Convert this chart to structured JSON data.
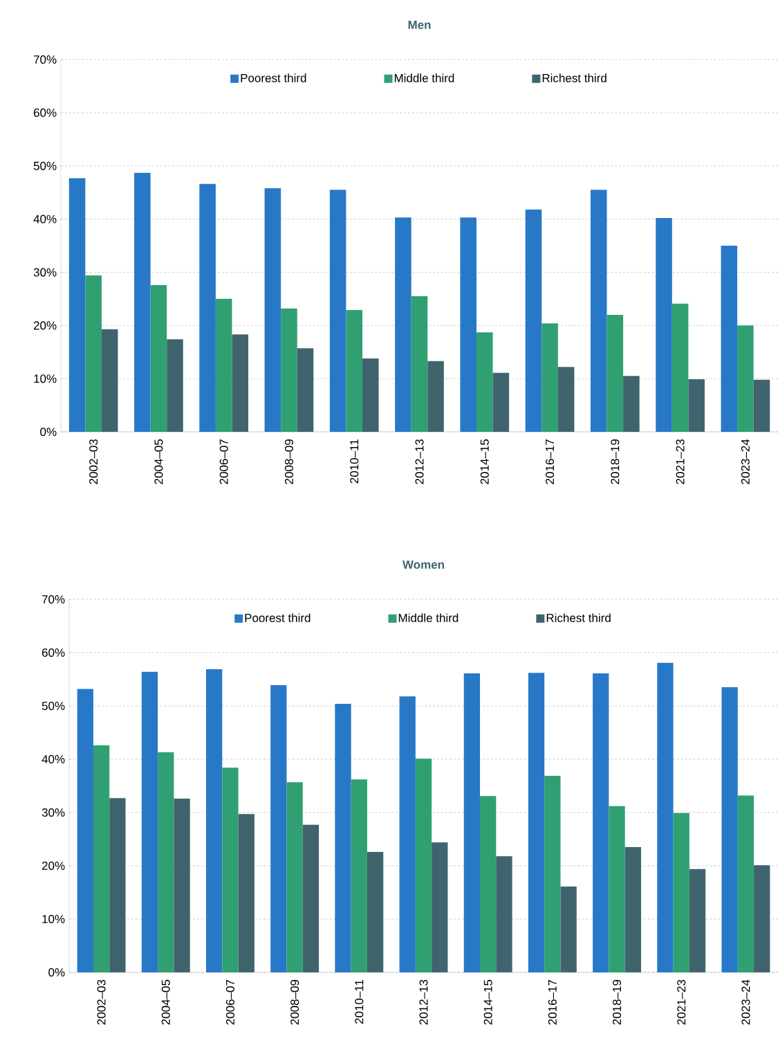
{
  "chart_data": [
    {
      "type": "bar",
      "title": "Men",
      "categories": [
        "2002–03",
        "2004–05",
        "2006–07",
        "2008–09",
        "2010–11",
        "2012–13",
        "2014–15",
        "2016–17",
        "2018–19",
        "2021–23",
        "2023–24"
      ],
      "series": [
        {
          "name": "Poorest third",
          "color": "#2878c8",
          "values": [
            47.7,
            48.7,
            46.6,
            45.8,
            45.5,
            40.3,
            40.3,
            41.8,
            45.5,
            40.2,
            35.0
          ]
        },
        {
          "name": "Middle third",
          "color": "#30a072",
          "values": [
            29.4,
            27.6,
            25.0,
            23.2,
            22.9,
            25.5,
            18.7,
            20.4,
            22.0,
            24.1,
            20.0
          ]
        },
        {
          "name": "Richest third",
          "color": "#40646e",
          "values": [
            19.3,
            17.4,
            18.3,
            15.7,
            13.8,
            13.3,
            11.1,
            12.2,
            10.5,
            9.9,
            9.8
          ]
        }
      ],
      "ylim": [
        0,
        70
      ],
      "yticks": [
        {
          "value": 0,
          "label": "0%"
        },
        {
          "value": 10,
          "label": "10%"
        },
        {
          "value": 20,
          "label": "20%"
        },
        {
          "value": 30,
          "label": "30%"
        },
        {
          "value": 40,
          "label": "40%"
        },
        {
          "value": 50,
          "label": "50%"
        },
        {
          "value": 60,
          "label": "60%"
        },
        {
          "value": 70,
          "label": "70%"
        }
      ],
      "grid": "y",
      "legend": "top"
    },
    {
      "type": "bar",
      "title": "Women",
      "categories": [
        "2002–03",
        "2004–05",
        "2006–07",
        "2008–09",
        "2010–11",
        "2012–13",
        "2014–15",
        "2016–17",
        "2018–19",
        "2021–23",
        "2023–24"
      ],
      "series": [
        {
          "name": "Poorest third",
          "color": "#2878c8",
          "values": [
            53.2,
            56.4,
            56.9,
            53.9,
            50.4,
            51.8,
            56.1,
            56.2,
            56.1,
            58.1,
            53.5
          ]
        },
        {
          "name": "Middle third",
          "color": "#30a072",
          "values": [
            42.6,
            41.3,
            38.4,
            35.7,
            36.2,
            40.1,
            33.1,
            36.9,
            31.2,
            29.9,
            33.2
          ]
        },
        {
          "name": "Richest third",
          "color": "#40646e",
          "values": [
            32.7,
            32.6,
            29.7,
            27.7,
            22.6,
            24.4,
            21.8,
            16.1,
            23.5,
            19.4,
            20.1
          ]
        }
      ],
      "ylim": [
        0,
        70
      ],
      "yticks": [
        {
          "value": 0,
          "label": "0%"
        },
        {
          "value": 10,
          "label": "10%"
        },
        {
          "value": 20,
          "label": "20%"
        },
        {
          "value": 30,
          "label": "30%"
        },
        {
          "value": 40,
          "label": "40%"
        },
        {
          "value": 50,
          "label": "50%"
        },
        {
          "value": 60,
          "label": "60%"
        },
        {
          "value": 70,
          "label": "70%"
        }
      ],
      "grid": "y",
      "legend": "top"
    }
  ]
}
